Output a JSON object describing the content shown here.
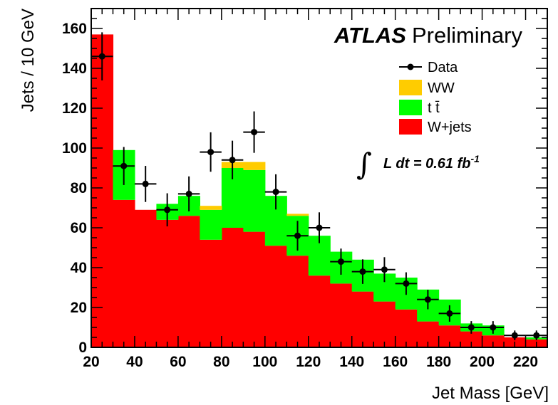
{
  "chart_data": {
    "type": "bar",
    "stacked": true,
    "bin_edges": [
      20,
      30,
      40,
      50,
      60,
      70,
      80,
      90,
      100,
      110,
      120,
      130,
      140,
      150,
      160,
      170,
      180,
      190,
      200,
      210,
      220,
      230
    ],
    "xlabel": "Jet Mass [GeV]",
    "ylabel": "Jets / 10 GeV",
    "xlim": [
      20,
      230
    ],
    "ylim": [
      0,
      170
    ],
    "xticks": [
      20,
      40,
      60,
      80,
      100,
      120,
      140,
      160,
      180,
      200,
      220
    ],
    "yticks": [
      0,
      20,
      40,
      60,
      80,
      100,
      120,
      140,
      160
    ],
    "series": [
      {
        "name": "W+jets",
        "color": "#ff0000",
        "values": [
          157,
          74,
          69,
          64,
          66,
          54,
          60,
          58,
          51,
          46,
          36,
          32,
          28,
          23,
          19,
          13,
          11,
          8,
          6,
          5,
          4
        ]
      },
      {
        "name": "t t̄",
        "color": "#00ff00",
        "values": [
          0,
          25,
          0,
          8,
          10,
          15,
          30,
          31,
          25,
          20,
          20,
          16,
          16,
          14,
          16,
          16,
          13,
          4,
          5,
          0,
          1
        ]
      },
      {
        "name": "WW",
        "color": "#ffcc00",
        "values": [
          0,
          0,
          0,
          0,
          0,
          2,
          3,
          4,
          0,
          1,
          0,
          0,
          0,
          0,
          0,
          0,
          0,
          0,
          0,
          0,
          0
        ]
      }
    ],
    "data": {
      "name": "Data",
      "x": [
        25,
        35,
        45,
        55,
        65,
        75,
        85,
        95,
        105,
        115,
        125,
        135,
        145,
        155,
        165,
        175,
        185,
        195,
        205,
        215,
        225
      ],
      "y": [
        146,
        91,
        82,
        69,
        77,
        98,
        94,
        108,
        78,
        56,
        60,
        43,
        38,
        39,
        32,
        24,
        17,
        10,
        10,
        6,
        6
      ]
    },
    "legend": {
      "placement": "top-right"
    },
    "experiment_label": {
      "strong": "ATLAS",
      "rest": "Preliminary"
    },
    "luminosity_label": {
      "prefix": "L  dt = 0.61 fb",
      "superscript": "-1"
    },
    "grid": false
  }
}
